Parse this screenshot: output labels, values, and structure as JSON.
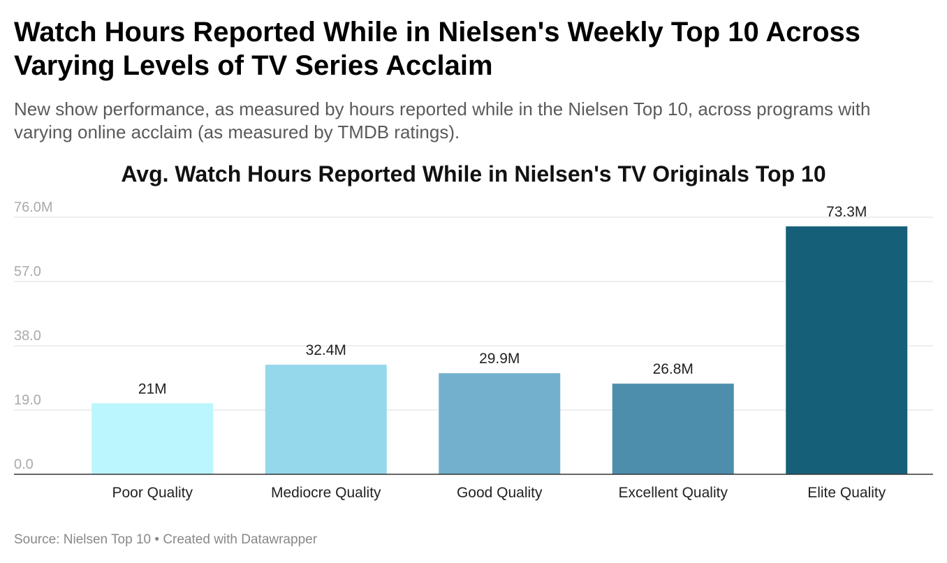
{
  "header": {
    "title": "Watch Hours Reported While in Nielsen's Weekly Top 10 Across Varying Levels of TV Series Acclaim",
    "subtitle": "New show performance, as measured by hours reported while in the Nielsen Top 10, across programs with varying online acclaim (as measured by TMDB ratings)."
  },
  "footer": {
    "source": "Source: Nielsen Top 10 • Created with Datawrapper"
  },
  "chart_data": {
    "type": "bar",
    "title": "Avg. Watch Hours Reported While in Nielsen's TV Originals Top 10",
    "xlabel": "",
    "ylabel": "",
    "categories": [
      "Poor Quality",
      "Mediocre Quality",
      "Good Quality",
      "Excellent Quality",
      "Elite Quality"
    ],
    "values": [
      21,
      32.4,
      29.9,
      26.8,
      73.3
    ],
    "value_labels": [
      "21M",
      "32.4M",
      "29.9M",
      "26.8M",
      "73.3M"
    ],
    "ylim": [
      0,
      76
    ],
    "yticks": [
      0,
      19,
      38,
      57,
      76
    ],
    "ytick_labels": [
      "0.0",
      "19.0",
      "38.0",
      "57.0",
      "76.0M"
    ],
    "grid": true,
    "colors": [
      "#bbf5fd",
      "#96d8eb",
      "#73b0cd",
      "#4e8ead",
      "#165f79"
    ]
  }
}
